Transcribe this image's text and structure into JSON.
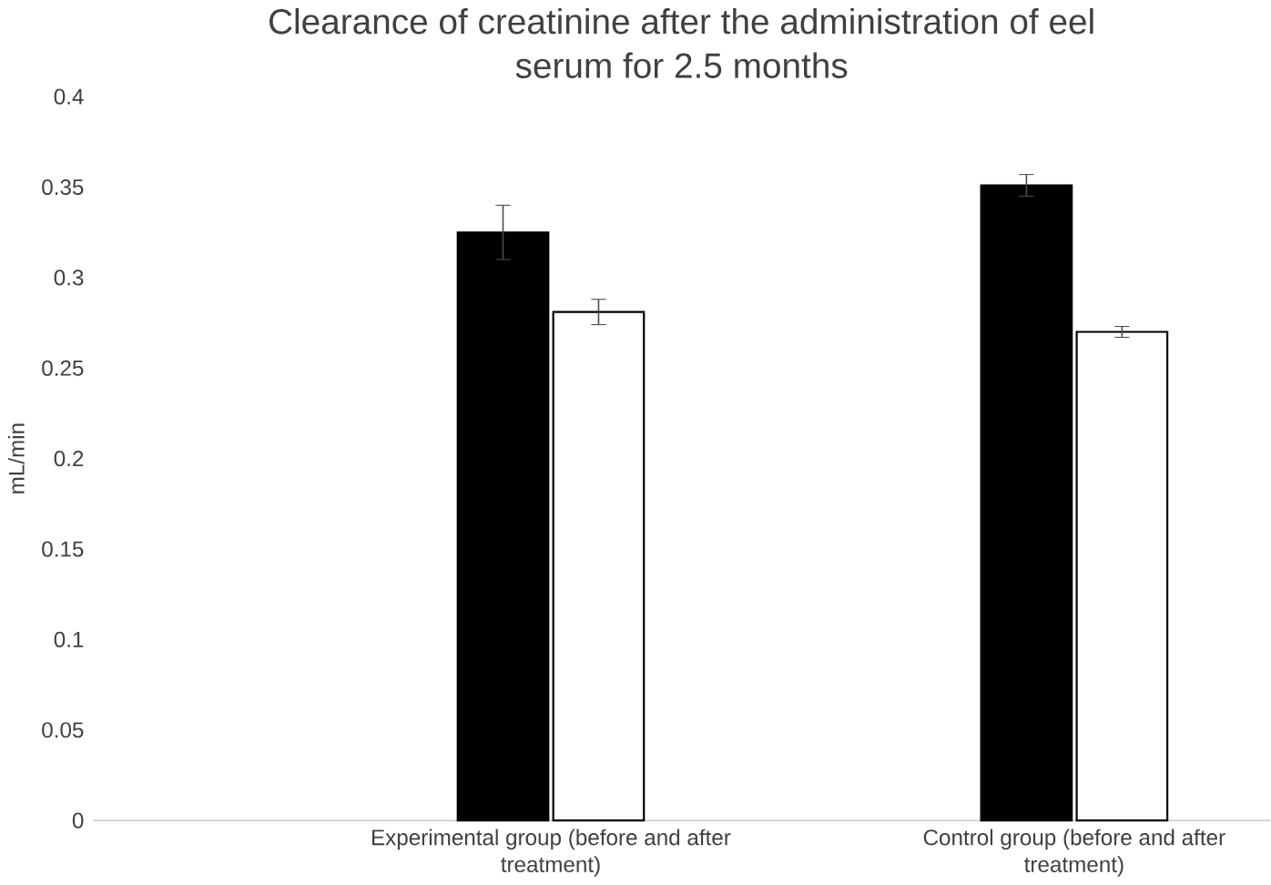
{
  "chart_data": {
    "type": "bar",
    "title": "Clearance of creatinine after the administration of eel serum for 2.5 months",
    "ylabel": "mL/min",
    "categories": [
      "Experimental group (before and after treatment)",
      "Control group (before and after treatment)"
    ],
    "series": [
      {
        "color": "#000000",
        "values": [
          0.325,
          0.351
        ],
        "errors": [
          0.015,
          0.006
        ]
      },
      {
        "color": "#ffffff",
        "values": [
          0.281,
          0.27
        ],
        "errors": [
          0.007,
          0.003
        ]
      }
    ],
    "ylim": [
      0,
      0.4
    ],
    "yticks": [
      0,
      0.05,
      0.1,
      0.15,
      0.2,
      0.25,
      0.3,
      0.35,
      0.4
    ]
  }
}
